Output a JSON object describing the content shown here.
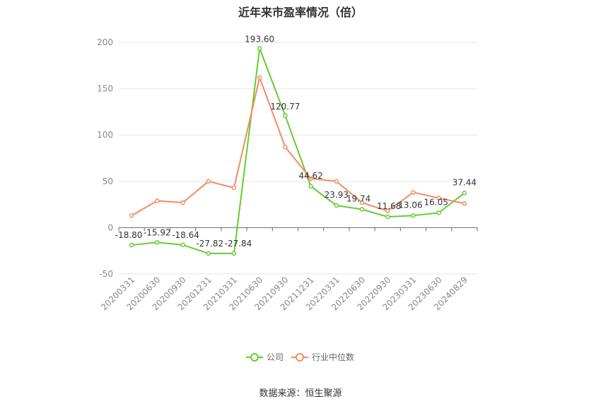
{
  "chart_data": {
    "type": "line",
    "title": "近年来市盈率情况（倍）",
    "categories": [
      "20200331",
      "20200630",
      "20200930",
      "20201231",
      "20210331",
      "20210630",
      "20210930",
      "20211231",
      "20220331",
      "20220630",
      "20220930",
      "20230331",
      "20230630",
      "20240829"
    ],
    "series": [
      {
        "name": "公司",
        "color": "#66cc33",
        "values": [
          -18.8,
          -15.92,
          -18.64,
          -27.82,
          -27.84,
          193.6,
          120.77,
          44.62,
          23.93,
          19.74,
          11.68,
          13.06,
          16.05,
          37.44
        ],
        "labels": [
          "-18.80",
          "-15.92",
          "-18.64",
          "-27.82",
          "-27.84",
          "193.60",
          "120.77",
          "44.62",
          "23.93",
          "19.74",
          "11.68",
          "13.06",
          "16.05",
          "37.44"
        ]
      },
      {
        "name": "行业中位数",
        "color": "#f28c62",
        "values": [
          13,
          29,
          27,
          50,
          43,
          162,
          87,
          53,
          50,
          27,
          18,
          38,
          32,
          26
        ]
      }
    ],
    "yticks": [
      -50,
      0,
      50,
      100,
      150,
      200
    ],
    "ylim": [
      -50,
      200
    ],
    "grid": true,
    "legend": "bottom-center"
  },
  "source": "数据来源：恒生聚源"
}
